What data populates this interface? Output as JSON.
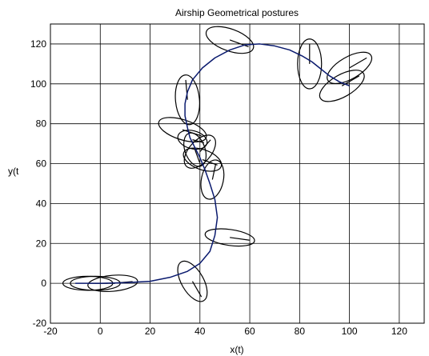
{
  "chart_data": {
    "type": "line",
    "title": "Airship Geometrical postures",
    "xlabel": "x(t)",
    "ylabel": "y(t",
    "xlim": [
      -20,
      130
    ],
    "ylim": [
      -20,
      130
    ],
    "xticks": [
      -20,
      0,
      20,
      40,
      60,
      80,
      100,
      120
    ],
    "yticks": [
      -20,
      0,
      20,
      40,
      60,
      80,
      100,
      120
    ],
    "grid": true,
    "colors": {
      "trajectory": "#0a1a6e",
      "posture": "#000000",
      "grid": "#000000"
    },
    "series": [
      {
        "x": [
          -10,
          0,
          10,
          20,
          28,
          35,
          40,
          44,
          46,
          47,
          46,
          44,
          42,
          40,
          38,
          36,
          35,
          34,
          34,
          35,
          37,
          41,
          46,
          52,
          58,
          64,
          70,
          76,
          81,
          85,
          88,
          92,
          96,
          100
        ],
        "y": [
          0,
          0,
          0.3,
          1,
          3,
          6,
          10,
          16,
          24,
          33,
          42,
          50,
          57,
          63,
          68,
          73,
          78,
          84,
          90,
          96,
          102,
          108,
          113,
          117,
          119.5,
          120,
          119,
          117,
          114,
          111,
          108,
          104,
          101,
          99
        ]
      }
    ],
    "postures": [
      {
        "x": -5,
        "y": 0,
        "a": 10,
        "b": 3.5,
        "angle": 0
      },
      {
        "x": -2,
        "y": 0,
        "a": 10,
        "b": 3.5,
        "angle": 0
      },
      {
        "x": 5,
        "y": 0,
        "a": 10,
        "b": 4,
        "angle": 5
      },
      {
        "x": 37,
        "y": 1,
        "a": 9,
        "b": 5.5,
        "angle": -60
      },
      {
        "x": 52,
        "y": 23,
        "a": 10,
        "b": 4,
        "angle": -8
      },
      {
        "x": 45,
        "y": 52,
        "a": 8,
        "b": 5.5,
        "angle": 78
      },
      {
        "x": 41,
        "y": 62,
        "a": 8,
        "b": 5,
        "angle": -20
      },
      {
        "x": 40,
        "y": 66,
        "a": 8,
        "b": 5.5,
        "angle": 48
      },
      {
        "x": 38,
        "y": 67,
        "a": 7,
        "b": 5,
        "angle": -70
      },
      {
        "x": 37,
        "y": 72,
        "a": 6,
        "b": 4.5,
        "angle": -15
      },
      {
        "x": 33,
        "y": 77,
        "a": 10,
        "b": 5,
        "angle": -18
      },
      {
        "x": 35,
        "y": 92,
        "a": 10,
        "b": 6,
        "angle": 95
      },
      {
        "x": 52,
        "y": 122,
        "a": 10,
        "b": 5.5,
        "angle": -20
      },
      {
        "x": 84,
        "y": 110,
        "a": 10,
        "b": 6,
        "angle": 90
      },
      {
        "x": 100,
        "y": 108,
        "a": 10,
        "b": 5.5,
        "angle": 30
      },
      {
        "x": 97,
        "y": 99,
        "a": 10,
        "b": 5.5,
        "angle": 30
      }
    ]
  }
}
